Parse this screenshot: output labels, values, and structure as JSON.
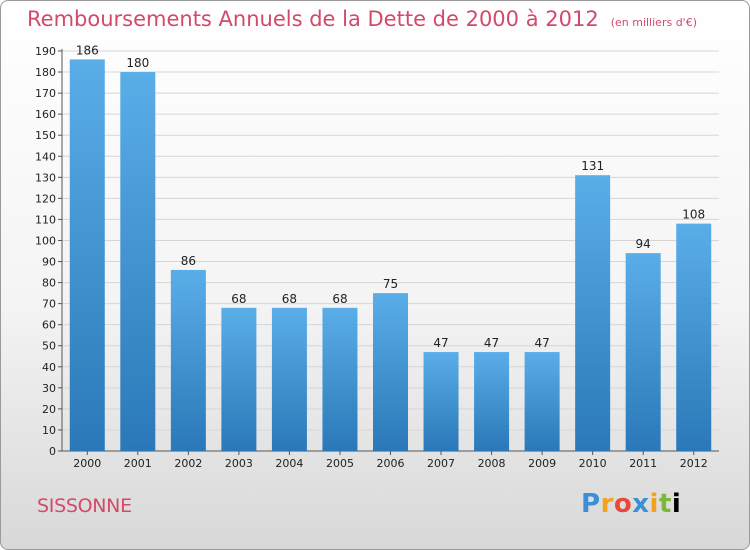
{
  "header": {
    "title": "Remboursements Annuels de la Dette de 2000 à 2012",
    "unit": "(en milliers d'€)"
  },
  "footer": {
    "town": "SISSONNE",
    "logo": [
      "P",
      "r",
      "o",
      "x",
      "i",
      "t",
      "i"
    ]
  },
  "colors": {
    "title": "#d24a6a",
    "bar_top": "#5aaee8",
    "bar_bottom": "#2a78b8"
  },
  "chart_data": {
    "type": "bar",
    "title": "Remboursements Annuels de la Dette de 2000 à 2012",
    "xlabel": "",
    "ylabel": "",
    "categories": [
      "2000",
      "2001",
      "2002",
      "2003",
      "2004",
      "2005",
      "2006",
      "2007",
      "2008",
      "2009",
      "2010",
      "2011",
      "2012"
    ],
    "values": [
      186,
      180,
      86,
      68,
      68,
      68,
      75,
      47,
      47,
      47,
      131,
      94,
      108
    ],
    "ylim": [
      0,
      190
    ],
    "ytick_step": 10,
    "grid": true,
    "legend": "none"
  }
}
